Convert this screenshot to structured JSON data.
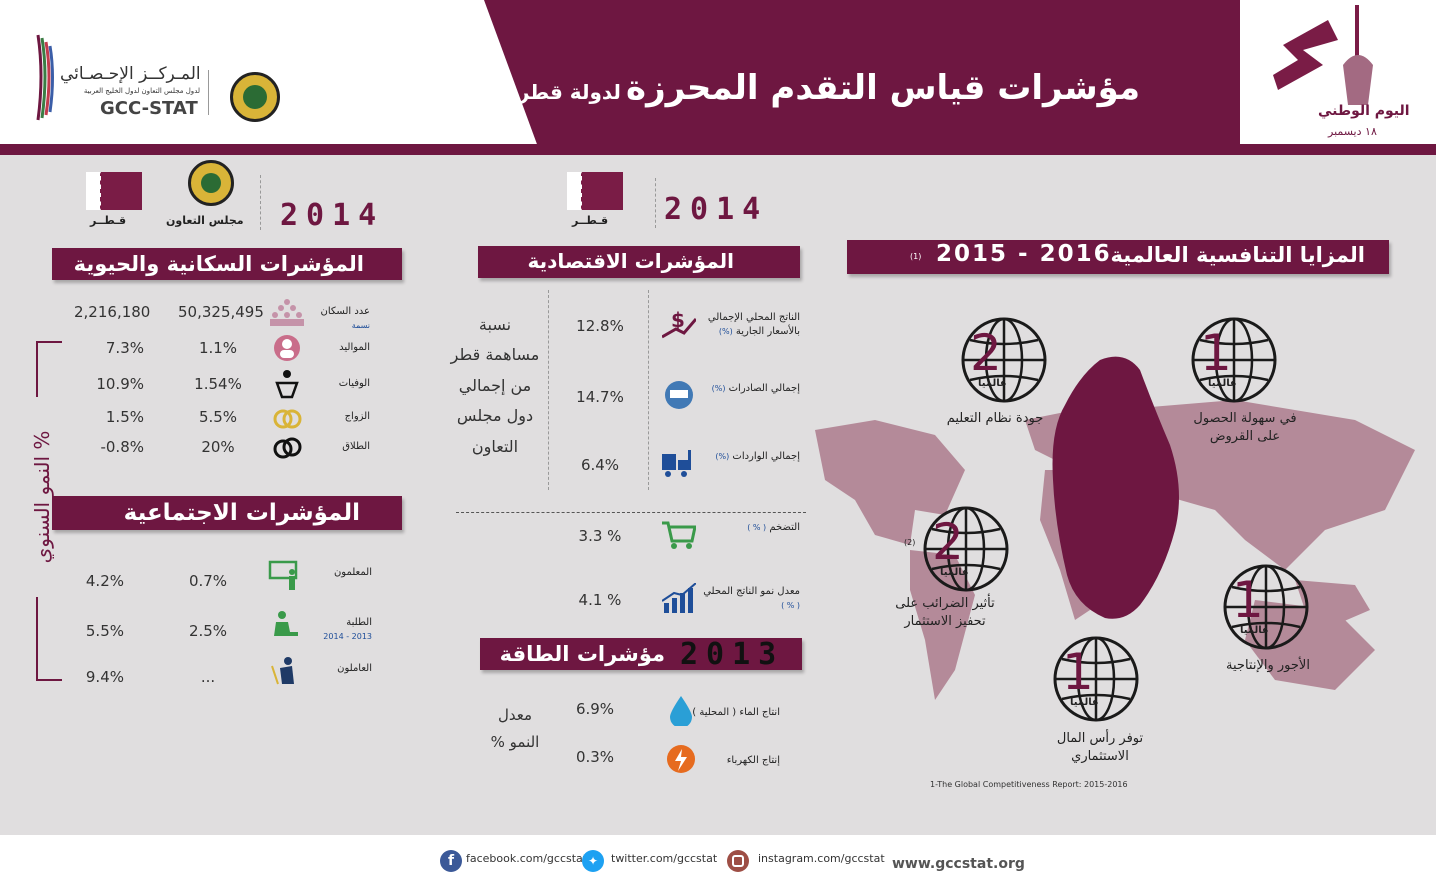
{
  "header": {
    "title_main": "مؤشرات قياس التقدم المحرزة",
    "title_sub": "لدولة قطر",
    "gcc_stat_ar": "المـركــز الإحـصـائي",
    "gcc_stat_ar_sub": "لدول مجلس التعاون لدول الخليج العربية",
    "gcc_stat_en": "GCC-STAT",
    "national_day_ar": "اليوم الوطني",
    "national_day_date": "١٨ ديسمبر"
  },
  "colors": {
    "brand": "#6e1741",
    "background": "#e0dedf",
    "map": "#b48a99",
    "qatar": "#6e1741"
  },
  "demographic": {
    "year": "2014",
    "col_gcc": "مجلس التعاون",
    "col_qatar": "قـطــر",
    "title": "المؤشرات السكانية والحيوية",
    "rows": [
      {
        "label": "عدد السكان",
        "sub": "نسمة",
        "gcc": "50,325,495",
        "qatar": "2,216,180",
        "icon": "population-icon"
      },
      {
        "label": "المواليد",
        "sub": "",
        "gcc": "1.1%",
        "qatar": "7.3%",
        "icon": "baby-icon"
      },
      {
        "label": "الوفيات",
        "sub": "",
        "gcc": "1.54%",
        "qatar": "10.9%",
        "icon": "death-icon"
      },
      {
        "label": "الزواج",
        "sub": "",
        "gcc": "5.5%",
        "qatar": "1.5%",
        "icon": "rings-icon"
      },
      {
        "label": "الطلاق",
        "sub": "",
        "gcc": "20%",
        "qatar": "-0.8%",
        "icon": "broken-rings-icon"
      }
    ]
  },
  "social": {
    "title": "المؤشرات الاجتماعية",
    "rows": [
      {
        "label": "المعلمون",
        "sub": "",
        "gcc": "0.7%",
        "qatar": "4.2%",
        "icon": "teacher-icon"
      },
      {
        "label": "الطلبة",
        "sub": "2013 - 2014",
        "gcc": "2.5%",
        "qatar": "5.5%",
        "icon": "student-icon"
      },
      {
        "label": "العاملون",
        "sub": "",
        "gcc": "...",
        "qatar": "9.4%",
        "icon": "worker-icon"
      }
    ]
  },
  "annual_growth_label": "النمو السنوي %",
  "economic": {
    "year": "2014",
    "col_qatar": "قـطــر",
    "title": "المؤشرات الاقتصادية",
    "share_label": "نسبة مساهمة قطر من إجمالي دول مجلس التعاون",
    "rows": [
      {
        "label": "الناتج المحلي الإجمالي بالأسعار الجارية",
        "unit": "(%)",
        "value": "12.8%",
        "icon": "gdp-icon"
      },
      {
        "label": "إجمالي الصادرات",
        "unit": "(%)",
        "value": "14.7%",
        "icon": "exports-icon"
      },
      {
        "label": "إجمالي الواردات",
        "unit": "(%)",
        "value": "6.4%",
        "icon": "imports-icon"
      },
      {
        "label": "التضخم",
        "unit": "( % )",
        "value": "3.3 %",
        "icon": "cart-icon"
      },
      {
        "label": "معدل نمو الناتج المحلي",
        "unit": "( % )",
        "value": "4.1 %",
        "icon": "growth-chart-icon"
      }
    ]
  },
  "energy": {
    "title": "مؤشرات الطاقة",
    "year": "2013",
    "growth_label": "معدل النمو %",
    "rows": [
      {
        "label": "انتاج الماء ( المحلية )",
        "value": "6.9%",
        "icon": "water-drop-icon"
      },
      {
        "label": "إنتاج الكهرباء",
        "value": "0.3%",
        "icon": "electricity-icon"
      }
    ]
  },
  "competitiveness": {
    "title": "المزايا التنافسية العالمية",
    "years": "2016 - 2015",
    "note_ref": "(1)",
    "world_label": "عالميا",
    "ranks": [
      {
        "rank": "1",
        "label": "في سهولة الحصول على القروض"
      },
      {
        "rank": "2",
        "label": "جودة نظام التعليم"
      },
      {
        "rank": "2",
        "label": "تأثير الضرائب على تحفيز الاستثمار",
        "ref": "(2)"
      },
      {
        "rank": "1",
        "label": "الأجور والإنتاجية"
      },
      {
        "rank": "1",
        "label": "توفر رأس المال الاستثماري"
      }
    ],
    "source": "1-The Global Competitiveness Report: 2015-2016"
  },
  "footer": {
    "facebook": "facebook.com/gccstat",
    "twitter": "twitter.com/gccstat",
    "instagram": "instagram.com/gccstat",
    "website": "www.gccstat.org"
  }
}
